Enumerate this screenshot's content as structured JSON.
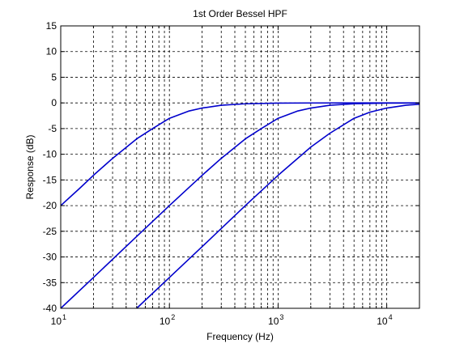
{
  "chart_data": {
    "type": "line",
    "title": "1st Order Bessel HPF",
    "xlabel": "Frequency (Hz)",
    "ylabel": "Response (dB)",
    "xscale": "log",
    "xlim": [
      10,
      20000
    ],
    "ylim": [
      -40,
      15
    ],
    "grid": true,
    "x_ticks": [
      {
        "value": 10,
        "base": "10",
        "exp": "1"
      },
      {
        "value": 100,
        "base": "10",
        "exp": "2"
      },
      {
        "value": 1000,
        "base": "10",
        "exp": "3"
      },
      {
        "value": 10000,
        "base": "10",
        "exp": "4"
      }
    ],
    "y_ticks": [
      {
        "value": 15,
        "label": "15"
      },
      {
        "value": 10,
        "label": "10"
      },
      {
        "value": 5,
        "label": "5"
      },
      {
        "value": 0,
        "label": "0"
      },
      {
        "value": -5,
        "label": "-5"
      },
      {
        "value": -10,
        "label": "-10"
      },
      {
        "value": -15,
        "label": "-15"
      },
      {
        "value": -20,
        "label": "-20"
      },
      {
        "value": -25,
        "label": "-25"
      },
      {
        "value": -30,
        "label": "-30"
      },
      {
        "value": -35,
        "label": "-35"
      },
      {
        "value": -40,
        "label": "-40"
      }
    ],
    "line_color": "#0000cc",
    "series": [
      {
        "x": [
          10,
          15,
          20,
          30,
          50,
          70,
          100,
          150,
          200,
          300,
          500,
          1000,
          2000,
          5000,
          10000,
          20000
        ],
        "values": [
          -20.0,
          -16.6,
          -14.1,
          -10.8,
          -7.0,
          -5.0,
          -3.0,
          -1.6,
          -1.0,
          -0.45,
          -0.17,
          -0.04,
          -0.01,
          0.0,
          0.0,
          0.0
        ]
      },
      {
        "x": [
          10,
          20,
          50,
          100,
          200,
          300,
          500,
          700,
          1000,
          1500,
          2000,
          3000,
          5000,
          10000,
          20000
        ],
        "values": [
          -40.0,
          -34.0,
          -26.0,
          -20.0,
          -14.1,
          -10.8,
          -7.0,
          -5.0,
          -3.0,
          -1.6,
          -1.0,
          -0.45,
          -0.17,
          -0.04,
          -0.01
        ]
      },
      {
        "x": [
          50,
          100,
          200,
          500,
          1000,
          2000,
          3000,
          5000,
          7000,
          10000,
          15000,
          20000
        ],
        "values": [
          -40.0,
          -34.0,
          -28.0,
          -20.0,
          -14.1,
          -8.6,
          -5.9,
          -3.0,
          -1.8,
          -1.0,
          -0.45,
          -0.26
        ]
      }
    ]
  }
}
